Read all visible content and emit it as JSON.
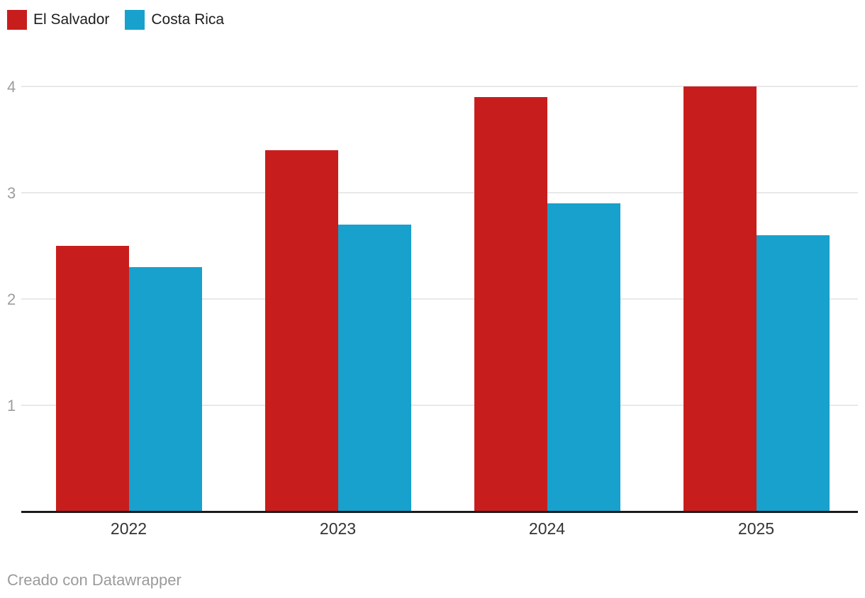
{
  "chart_data": {
    "type": "bar",
    "categories": [
      "2022",
      "2023",
      "2024",
      "2025"
    ],
    "series": [
      {
        "name": "El Salvador",
        "color": "#c71e1d",
        "values": [
          2.5,
          3.4,
          3.9,
          4.0
        ]
      },
      {
        "name": "Costa Rica",
        "color": "#18a1cd",
        "values": [
          2.3,
          2.7,
          2.9,
          2.6
        ]
      }
    ],
    "y_ticks": [
      4,
      3,
      2,
      1
    ],
    "ylim": [
      0,
      4.15
    ],
    "grid": "horizontal",
    "legend_position": "top-left",
    "title": "",
    "xlabel": "",
    "ylabel": ""
  },
  "footer": {
    "credit": "Creado con Datawrapper"
  },
  "colors": {
    "background": "#ffffff",
    "grid": "#e8e8e8",
    "axis": "#1a1a1a",
    "tick_label": "#9d9d9d",
    "category_label": "#333333",
    "footer_text": "#9b9b9b",
    "legend_text": "#1d1d1d"
  }
}
